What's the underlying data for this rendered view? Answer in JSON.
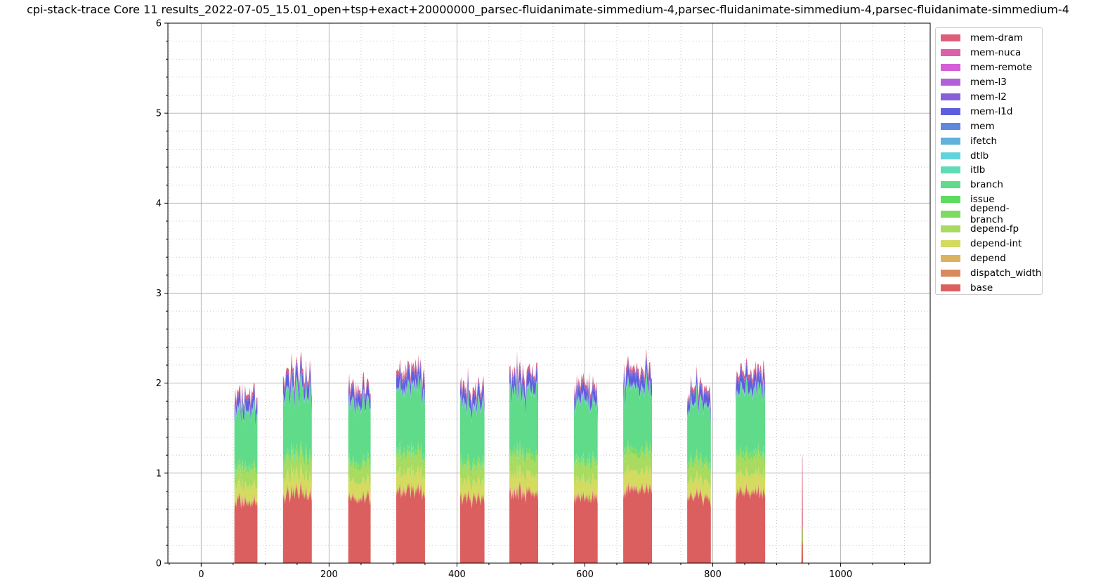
{
  "chart_data": {
    "type": "area",
    "title": "cpi-stack-trace Core 11 results_2022-07-05_15.01_open+tsp+exact+20000000_parsec-fluidanimate-simmedium-4,parsec-fluidanimate-simmedium-4,parsec-fluidanimate-simmedium-4",
    "xlabel": "",
    "ylabel": "",
    "xlim": [
      -52,
      1140
    ],
    "ylim": [
      0,
      6
    ],
    "xticks": [
      "0",
      "200",
      "400",
      "600",
      "800",
      "1000"
    ],
    "xtick_values": [
      0,
      200,
      400,
      600,
      800,
      1000
    ],
    "yticks": [
      "0",
      "1",
      "2",
      "3",
      "4",
      "5",
      "6"
    ],
    "ytick_values": [
      0,
      1,
      2,
      3,
      4,
      5,
      6
    ],
    "grid": true,
    "legend_position": "upper-right-outside",
    "bursts": [
      {
        "start": 52,
        "end": 88,
        "total": 1.92
      },
      {
        "start": 128,
        "end": 173,
        "total": 2.18
      },
      {
        "start": 230,
        "end": 265,
        "total": 2.02
      },
      {
        "start": 305,
        "end": 350,
        "total": 2.18
      },
      {
        "start": 405,
        "end": 443,
        "total": 2.02
      },
      {
        "start": 482,
        "end": 527,
        "total": 2.18
      },
      {
        "start": 583,
        "end": 620,
        "total": 2.02
      },
      {
        "start": 660,
        "end": 705,
        "total": 2.18
      },
      {
        "start": 760,
        "end": 797,
        "total": 2.02
      },
      {
        "start": 836,
        "end": 882,
        "total": 2.18
      }
    ],
    "spike": {
      "x": 940,
      "total": 1.22
    },
    "stack_fractions_in_burst": {
      "base": 0.72,
      "dispatch_width": 0.02,
      "depend": 0.02,
      "depend-int": 0.16,
      "depend-fp": 0.17,
      "depend-branch": 0.05,
      "issue": 0.01,
      "branch": 0.62,
      "itlb": 0.01,
      "dtlb": 0.0,
      "ifetch": 0.01,
      "mem": 0.01,
      "mem-l1d": 0.11,
      "mem-l2": 0.03,
      "mem-l3": 0.0,
      "mem-remote": 0.0,
      "mem-nuca": 0.0,
      "mem-dram": 0.04
    },
    "series": [
      {
        "name": "mem-dram",
        "color": "#db5f7b"
      },
      {
        "name": "mem-nuca",
        "color": "#db5faa"
      },
      {
        "name": "mem-remote",
        "color": "#d55fd6"
      },
      {
        "name": "mem-l3",
        "color": "#b25fdb"
      },
      {
        "name": "mem-l2",
        "color": "#875fdb"
      },
      {
        "name": "mem-l1d",
        "color": "#5f5fdb"
      },
      {
        "name": "mem",
        "color": "#5f87db"
      },
      {
        "name": "ifetch",
        "color": "#5fb2db"
      },
      {
        "name": "dtlb",
        "color": "#5fd5db"
      },
      {
        "name": "itlb",
        "color": "#5fdbb6"
      },
      {
        "name": "branch",
        "color": "#5fdb8a"
      },
      {
        "name": "issue",
        "color": "#5fdb5f"
      },
      {
        "name": "depend-branch",
        "color": "#7fdb5f"
      },
      {
        "name": "depend-fp",
        "color": "#a8db5f"
      },
      {
        "name": "depend-int",
        "color": "#d4db5f"
      },
      {
        "name": "depend",
        "color": "#dbb25f"
      },
      {
        "name": "dispatch_width",
        "color": "#db8a5f"
      },
      {
        "name": "base",
        "color": "#db5f5f"
      }
    ]
  }
}
